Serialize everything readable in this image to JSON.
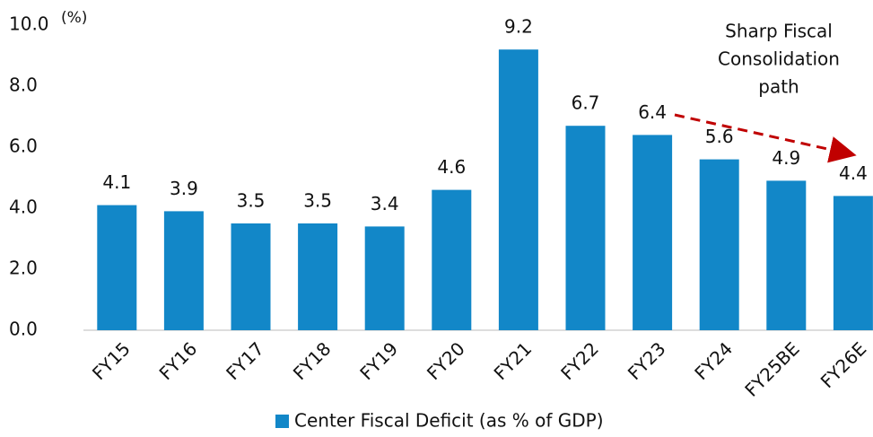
{
  "chart_data": {
    "type": "bar",
    "y_unit": "(%)",
    "categories": [
      "FY15",
      "FY16",
      "FY17",
      "FY18",
      "FY19",
      "FY20",
      "FY21",
      "FY22",
      "FY23",
      "FY24",
      "FY25BE",
      "FY26E"
    ],
    "series": [
      {
        "name": "Center Fiscal Deficit (as % of GDP)",
        "color": "#1287c8",
        "values": [
          4.1,
          3.9,
          3.5,
          3.5,
          3.4,
          4.6,
          9.2,
          6.7,
          6.4,
          5.6,
          4.9,
          4.4
        ]
      }
    ],
    "ylim": [
      0,
      10
    ],
    "yticks": [
      {
        "value": 0,
        "label": "0.0"
      },
      {
        "value": 2,
        "label": "2.0"
      },
      {
        "value": 4,
        "label": "4.0"
      },
      {
        "value": 6,
        "label": "6.0"
      },
      {
        "value": 8,
        "label": "8.0"
      },
      {
        "value": 10,
        "label": "10.0"
      }
    ],
    "grid": false,
    "legend": "bottom",
    "annotation": [
      "Sharp Fiscal",
      "Consolidation",
      "path"
    ]
  }
}
